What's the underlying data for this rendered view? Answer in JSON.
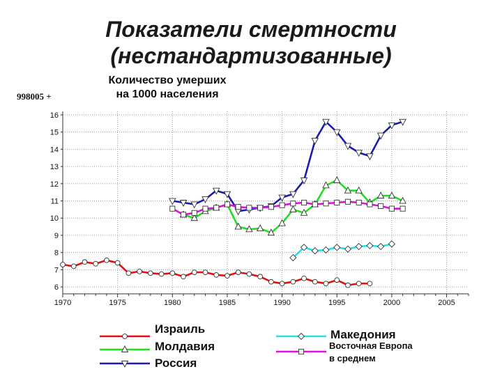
{
  "title_line1": "Показатели смертности",
  "title_line2": "(нестандартизованные)",
  "subtitle_line1": "Количество умерших",
  "subtitle_line2": "на 1000 населения",
  "code_label": "998005 +",
  "chart_data": {
    "type": "line",
    "xlim": [
      1970,
      2007
    ],
    "ylim": [
      5.6,
      16.2
    ],
    "x_ticks": [
      1970,
      1975,
      1980,
      1985,
      1990,
      1995,
      2000,
      2005
    ],
    "y_ticks": [
      6,
      7,
      8,
      9,
      10,
      11,
      12,
      13,
      14,
      15,
      16
    ],
    "grid": true,
    "series": [
      {
        "name": "Израиль",
        "color": "#e01010",
        "marker": "circle",
        "x": [
          1970,
          1971,
          1972,
          1973,
          1974,
          1975,
          1976,
          1977,
          1978,
          1979,
          1980,
          1981,
          1982,
          1983,
          1984,
          1985,
          1986,
          1987,
          1988,
          1989,
          1990,
          1991,
          1992,
          1993,
          1994,
          1995,
          1996,
          1997,
          1998
        ],
        "y": [
          7.3,
          7.2,
          7.45,
          7.35,
          7.55,
          7.4,
          6.8,
          6.9,
          6.8,
          6.75,
          6.8,
          6.6,
          6.85,
          6.85,
          6.7,
          6.65,
          6.85,
          6.75,
          6.6,
          6.3,
          6.2,
          6.3,
          6.5,
          6.3,
          6.2,
          6.4,
          6.1,
          6.2,
          6.2
        ]
      },
      {
        "name": "Молдавия",
        "color": "#22dd22",
        "marker": "triangle-up",
        "x": [
          1981,
          1982,
          1983,
          1984,
          1985,
          1986,
          1987,
          1988,
          1989,
          1990,
          1991,
          1992,
          1993,
          1994,
          1995,
          1996,
          1997,
          1998,
          1999,
          2000,
          2001
        ],
        "y": [
          10.2,
          10.0,
          10.4,
          10.6,
          10.8,
          9.5,
          9.35,
          9.4,
          9.15,
          9.7,
          10.5,
          10.3,
          10.8,
          11.9,
          12.2,
          11.6,
          11.6,
          10.9,
          11.3,
          11.3,
          11.0
        ]
      },
      {
        "name": "Россия",
        "color": "#1a1ab4",
        "marker": "triangle-down",
        "x": [
          1980,
          1981,
          1982,
          1983,
          1984,
          1985,
          1986,
          1987,
          1988,
          1989,
          1990,
          1991,
          1992,
          1993,
          1994,
          1995,
          1996,
          1997,
          1998,
          1999,
          2000,
          2001
        ],
        "y": [
          11.0,
          10.9,
          10.8,
          11.1,
          11.6,
          11.4,
          10.4,
          10.5,
          10.6,
          10.7,
          11.2,
          11.4,
          12.2,
          14.5,
          15.6,
          15.0,
          14.2,
          13.8,
          13.6,
          14.8,
          15.4,
          15.6
        ]
      },
      {
        "name": "Македония",
        "color": "#22e0e8",
        "marker": "diamond",
        "x": [
          1991,
          1992,
          1993,
          1994,
          1995,
          1996,
          1997,
          1998,
          1999,
          2000
        ],
        "y": [
          7.7,
          8.3,
          8.1,
          8.15,
          8.3,
          8.2,
          8.35,
          8.4,
          8.35,
          8.5
        ]
      },
      {
        "name": "Восточная Европа в среднем",
        "color": "#dd11dd",
        "marker": "square",
        "x": [
          1980,
          1981,
          1982,
          1983,
          1984,
          1985,
          1986,
          1987,
          1988,
          1989,
          1990,
          1991,
          1992,
          1993,
          1994,
          1995,
          1996,
          1997,
          1998,
          1999,
          2000,
          2001
        ],
        "y": [
          10.55,
          10.2,
          10.3,
          10.55,
          10.6,
          10.8,
          10.65,
          10.6,
          10.6,
          10.65,
          10.75,
          10.85,
          10.9,
          10.8,
          10.85,
          10.9,
          10.95,
          10.9,
          10.8,
          10.7,
          10.55,
          10.55
        ]
      }
    ]
  },
  "legend": {
    "israel": "Израиль",
    "moldova": "Молдавия",
    "russia": "Россия",
    "macedonia": "Македония",
    "eeurope_line1": "Восточная Европа",
    "eeurope_line2": "в среднем"
  }
}
